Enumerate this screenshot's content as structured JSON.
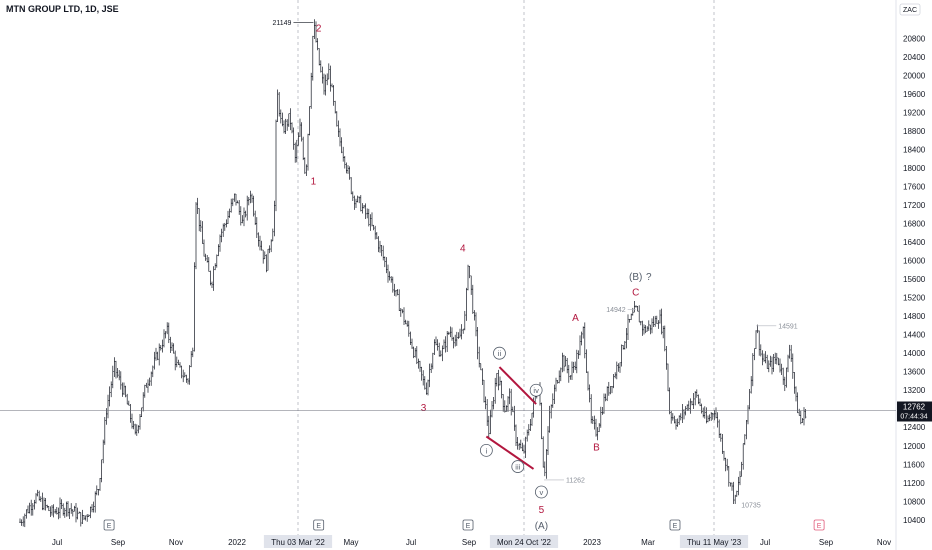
{
  "symbol_title": "MTN GROUP LTD, 1D, JSE",
  "currency": "ZAC",
  "chart_data": {
    "type": "ohlc-bar",
    "y_range": [
      10000,
      21300
    ],
    "price_ticks": [
      10400,
      10800,
      11200,
      11600,
      12000,
      12400,
      12800,
      13200,
      13600,
      14000,
      14400,
      14800,
      15200,
      15600,
      16000,
      16400,
      16800,
      17200,
      17600,
      18000,
      18400,
      18800,
      19200,
      19600,
      20000,
      20400,
      20800
    ],
    "time_labels": [
      {
        "label": "Jul",
        "highlight": false
      },
      {
        "label": "Sep",
        "highlight": false
      },
      {
        "label": "Nov",
        "highlight": false
      },
      {
        "label": "2022",
        "highlight": false
      },
      {
        "label": "Thu 03 Mar '22",
        "highlight": true
      },
      {
        "label": "May",
        "highlight": false
      },
      {
        "label": "Jul",
        "highlight": false
      },
      {
        "label": "Sep",
        "highlight": false
      },
      {
        "label": "Mon 24 Oct '22",
        "highlight": true
      },
      {
        "label": "2023",
        "highlight": false
      },
      {
        "label": "Mar",
        "highlight": false
      },
      {
        "label": "Thu 11 May '23",
        "highlight": true
      },
      {
        "label": "Jul",
        "highlight": false
      },
      {
        "label": "Sep",
        "highlight": false
      },
      {
        "label": "Nov",
        "highlight": false
      }
    ],
    "price_path": [
      [
        0,
        10350
      ],
      [
        6,
        10900
      ],
      [
        12,
        10550
      ],
      [
        18,
        10700
      ],
      [
        24,
        10400
      ],
      [
        27,
        10650
      ],
      [
        30,
        11100
      ],
      [
        33,
        12800
      ],
      [
        36,
        13700
      ],
      [
        40,
        13100
      ],
      [
        44,
        12200
      ],
      [
        48,
        13300
      ],
      [
        52,
        13900
      ],
      [
        56,
        14500
      ],
      [
        60,
        13700
      ],
      [
        64,
        13400
      ],
      [
        66,
        14200
      ],
      [
        67,
        17400
      ],
      [
        70,
        16200
      ],
      [
        73,
        15500
      ],
      [
        76,
        16500
      ],
      [
        79,
        16900
      ],
      [
        82,
        17400
      ],
      [
        85,
        16800
      ],
      [
        88,
        17500
      ],
      [
        91,
        16500
      ],
      [
        94,
        15900
      ],
      [
        97,
        16900
      ],
      [
        98,
        19700
      ],
      [
        100,
        18800
      ],
      [
        103,
        19100
      ],
      [
        105,
        18200
      ],
      [
        107,
        18900
      ],
      [
        109,
        17800
      ],
      [
        111,
        19900
      ],
      [
        112,
        21149
      ],
      [
        114,
        20300
      ],
      [
        116,
        19700
      ],
      [
        118,
        20100
      ],
      [
        121,
        18800
      ],
      [
        124,
        18200
      ],
      [
        127,
        17400
      ],
      [
        130,
        17200
      ],
      [
        133,
        16900
      ],
      [
        136,
        16500
      ],
      [
        139,
        16000
      ],
      [
        142,
        15500
      ],
      [
        145,
        15000
      ],
      [
        148,
        14500
      ],
      [
        152,
        13700
      ],
      [
        155,
        13200
      ],
      [
        158,
        14200
      ],
      [
        161,
        14000
      ],
      [
        164,
        14500
      ],
      [
        167,
        14200
      ],
      [
        170,
        14800
      ],
      [
        171,
        16000
      ],
      [
        173,
        14900
      ],
      [
        175,
        13900
      ],
      [
        177,
        13100
      ],
      [
        179,
        12300
      ],
      [
        182,
        13600
      ],
      [
        185,
        12800
      ],
      [
        187,
        13100
      ],
      [
        189,
        12200
      ],
      [
        192,
        11800
      ],
      [
        195,
        12600
      ],
      [
        198,
        13400
      ],
      [
        200,
        11300
      ],
      [
        202,
        12600
      ],
      [
        204,
        13200
      ],
      [
        207,
        13900
      ],
      [
        210,
        13500
      ],
      [
        213,
        14000
      ],
      [
        215,
        14500
      ],
      [
        218,
        12500
      ],
      [
        220,
        12300
      ],
      [
        223,
        13000
      ],
      [
        226,
        13400
      ],
      [
        229,
        13900
      ],
      [
        232,
        14600
      ],
      [
        235,
        14942
      ],
      [
        238,
        14500
      ],
      [
        241,
        14600
      ],
      [
        244,
        14800
      ],
      [
        246,
        14300
      ],
      [
        248,
        12700
      ],
      [
        251,
        12500
      ],
      [
        254,
        12800
      ],
      [
        258,
        13100
      ],
      [
        262,
        12500
      ],
      [
        265,
        12800
      ],
      [
        268,
        12000
      ],
      [
        271,
        11200
      ],
      [
        273,
        10800
      ],
      [
        275,
        11400
      ],
      [
        277,
        12400
      ],
      [
        279,
        13500
      ],
      [
        281,
        14591
      ],
      [
        283,
        13900
      ],
      [
        286,
        13700
      ],
      [
        289,
        13900
      ],
      [
        292,
        13400
      ],
      [
        294,
        14200
      ],
      [
        296,
        13000
      ],
      [
        298,
        12500
      ],
      [
        300,
        12762
      ]
    ],
    "last_price": "12762",
    "countdown": "07:44:34",
    "price_annotations": [
      {
        "label": "21149",
        "x": 112,
        "y": 21149
      },
      {
        "label": "14942",
        "x": 235,
        "y": 14942
      },
      {
        "label": "11262",
        "x": 200,
        "y": 11262
      },
      {
        "label": "14591",
        "x": 281,
        "y": 14591
      },
      {
        "label": "10735",
        "x": 273,
        "y": 10735
      }
    ],
    "wave_labels": [
      {
        "label": "2",
        "x": 114,
        "y": 20950,
        "tone": "red"
      },
      {
        "label": "1",
        "x": 112,
        "y": 17650,
        "tone": "red"
      },
      {
        "label": "4",
        "x": 169,
        "y": 16200,
        "tone": "red"
      },
      {
        "label": "3",
        "x": 154,
        "y": 12750,
        "tone": "red"
      },
      {
        "label": "A",
        "x": 212,
        "y": 14700,
        "tone": "red"
      },
      {
        "label": "B",
        "x": 220,
        "y": 11900,
        "tone": "red"
      },
      {
        "label": "C",
        "x": 235,
        "y": 15250,
        "tone": "red"
      },
      {
        "label": "(B)",
        "x": 235,
        "y": 15580,
        "tone": "gray"
      },
      {
        "label": "?",
        "x": 240,
        "y": 15580,
        "tone": "gray"
      },
      {
        "label": "5",
        "x": 199,
        "y": 10550,
        "tone": "red"
      },
      {
        "label": "(A)",
        "x": 199,
        "y": 10200,
        "tone": "gray"
      }
    ],
    "circled_labels": [
      {
        "label": "i",
        "x": 178,
        "y": 11900
      },
      {
        "label": "ii",
        "x": 183,
        "y": 14000
      },
      {
        "label": "iii",
        "x": 190,
        "y": 11550
      },
      {
        "label": "iv",
        "x": 197,
        "y": 13200
      },
      {
        "label": "v",
        "x": 199,
        "y": 11000
      }
    ],
    "trendlines": [
      {
        "from": [
          183,
          13700
        ],
        "to": [
          197,
          12900
        ]
      },
      {
        "from": [
          178,
          12200
        ],
        "to": [
          196,
          11500
        ]
      }
    ],
    "event_markers": [
      {
        "label": "E",
        "x": 34
      },
      {
        "label": "E",
        "x": 114
      },
      {
        "label": "E",
        "x": 171
      },
      {
        "label": "E",
        "x": 250
      },
      {
        "label": "E",
        "x": 305
      }
    ]
  }
}
